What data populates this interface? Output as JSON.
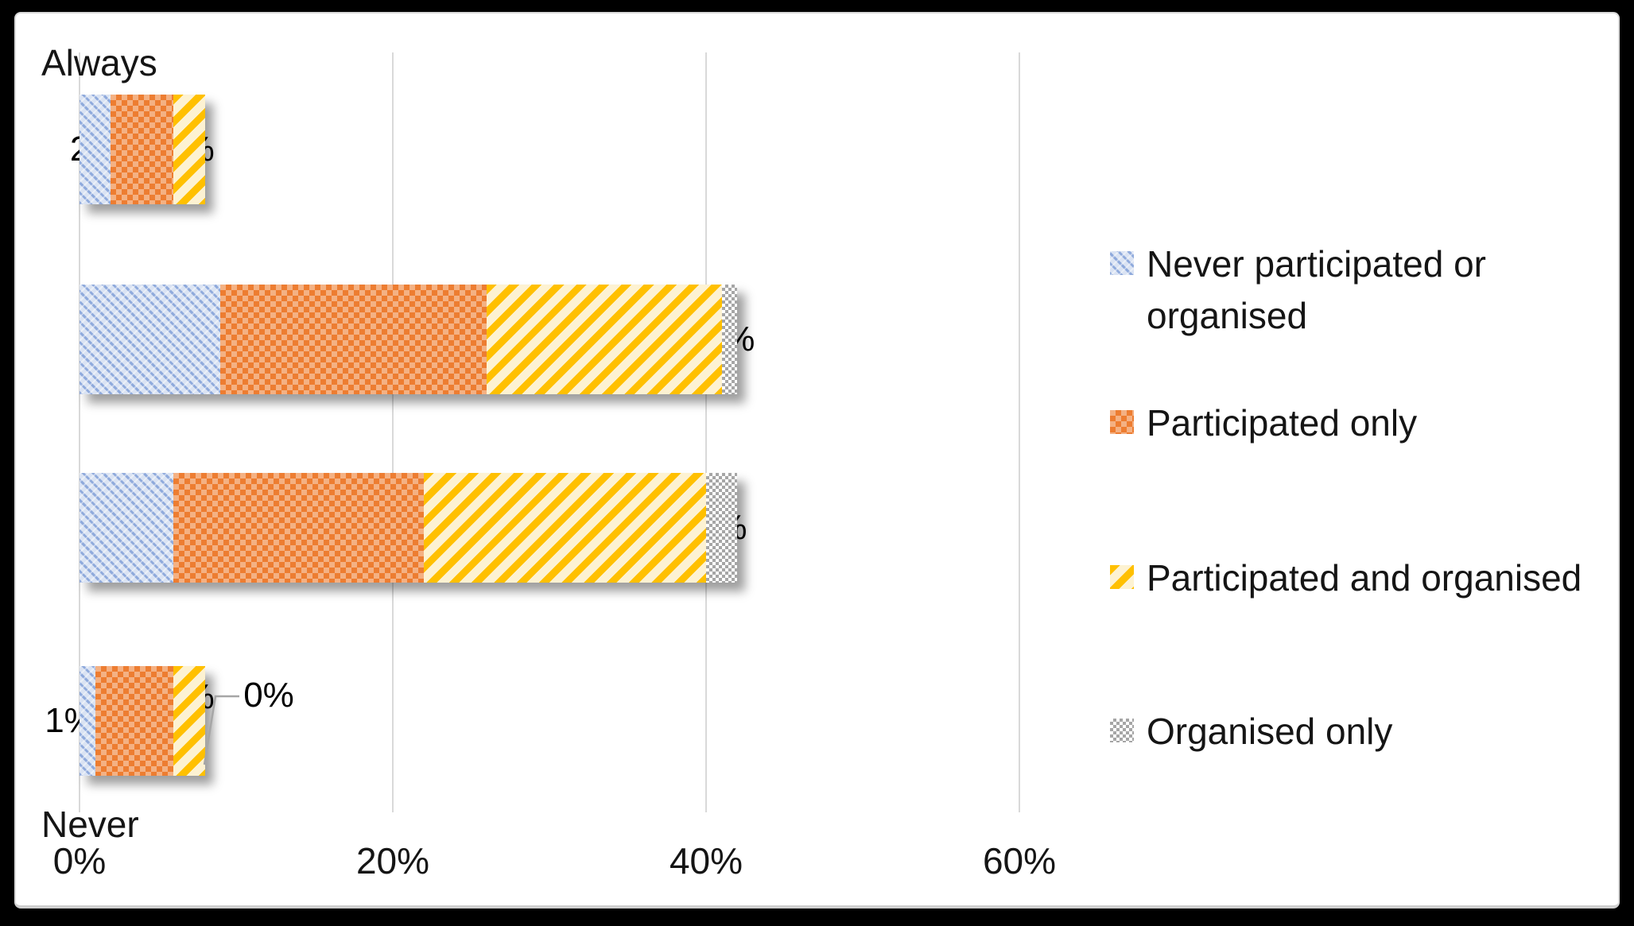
{
  "chart_data": {
    "type": "bar",
    "orientation": "horizontal-stacked",
    "title": "",
    "series": [
      "Never participated or organised",
      "Participated only",
      "Participated and organised",
      "Organised only"
    ],
    "rows": [
      {
        "segments": [
          {
            "series": 0,
            "value": 2,
            "label": "2%"
          },
          {
            "series": 1,
            "value": 4,
            "label": "4%"
          },
          {
            "series": 2,
            "value": 2,
            "label": "2%"
          }
        ]
      },
      {
        "segments": [
          {
            "series": 0,
            "value": 9,
            "label": "9%"
          },
          {
            "series": 1,
            "value": 17,
            "label": "17%"
          },
          {
            "series": 2,
            "value": 15,
            "label": "15%"
          },
          {
            "series": 3,
            "value": 1,
            "label": "1%"
          }
        ]
      },
      {
        "segments": [
          {
            "series": 0,
            "value": 6,
            "label": "6%"
          },
          {
            "series": 1,
            "value": 16,
            "label": "16%"
          },
          {
            "series": 2,
            "value": 18,
            "label": "18%"
          },
          {
            "series": 3,
            "value": 2,
            "label": "2%"
          }
        ]
      },
      {
        "segments": [
          {
            "series": 0,
            "value": 1,
            "label": "1%"
          },
          {
            "series": 1,
            "value": 5,
            "label": "5%"
          },
          {
            "series": 2,
            "value": 2,
            "label": "2%"
          },
          {
            "series": 3,
            "value": 0,
            "label": "0%",
            "leader_line": true
          }
        ]
      }
    ],
    "x_axis": {
      "ticks": [
        "0%",
        "20%",
        "40%",
        "60%"
      ],
      "range": [
        0,
        60
      ],
      "grid": true
    },
    "y_axis": {
      "top_label": "Always",
      "bottom_label": "Never"
    },
    "legend": {
      "position": "right",
      "items": [
        {
          "label": "Never participated or organised",
          "pattern": "blue-diagonal-dash"
        },
        {
          "label": "Participated only",
          "pattern": "orange-checker"
        },
        {
          "label": "Participated and organised",
          "pattern": "yellow-diagonal-stripe"
        },
        {
          "label": "Organised only",
          "pattern": "gray-checkerboard"
        }
      ]
    },
    "colors": {
      "blue_bg": "#dae3f3",
      "blue_stripe": "#8faadc",
      "orange_bg": "#f4b183",
      "orange_square": "#ed7d31",
      "yellow_bg": "#fdf2d2",
      "yellow_stripe": "#ffc000",
      "gray_check": "#a6a6a6",
      "gridline": "#d9d9d9",
      "panel_background": "#ffffff",
      "page_background": "#000000"
    }
  }
}
